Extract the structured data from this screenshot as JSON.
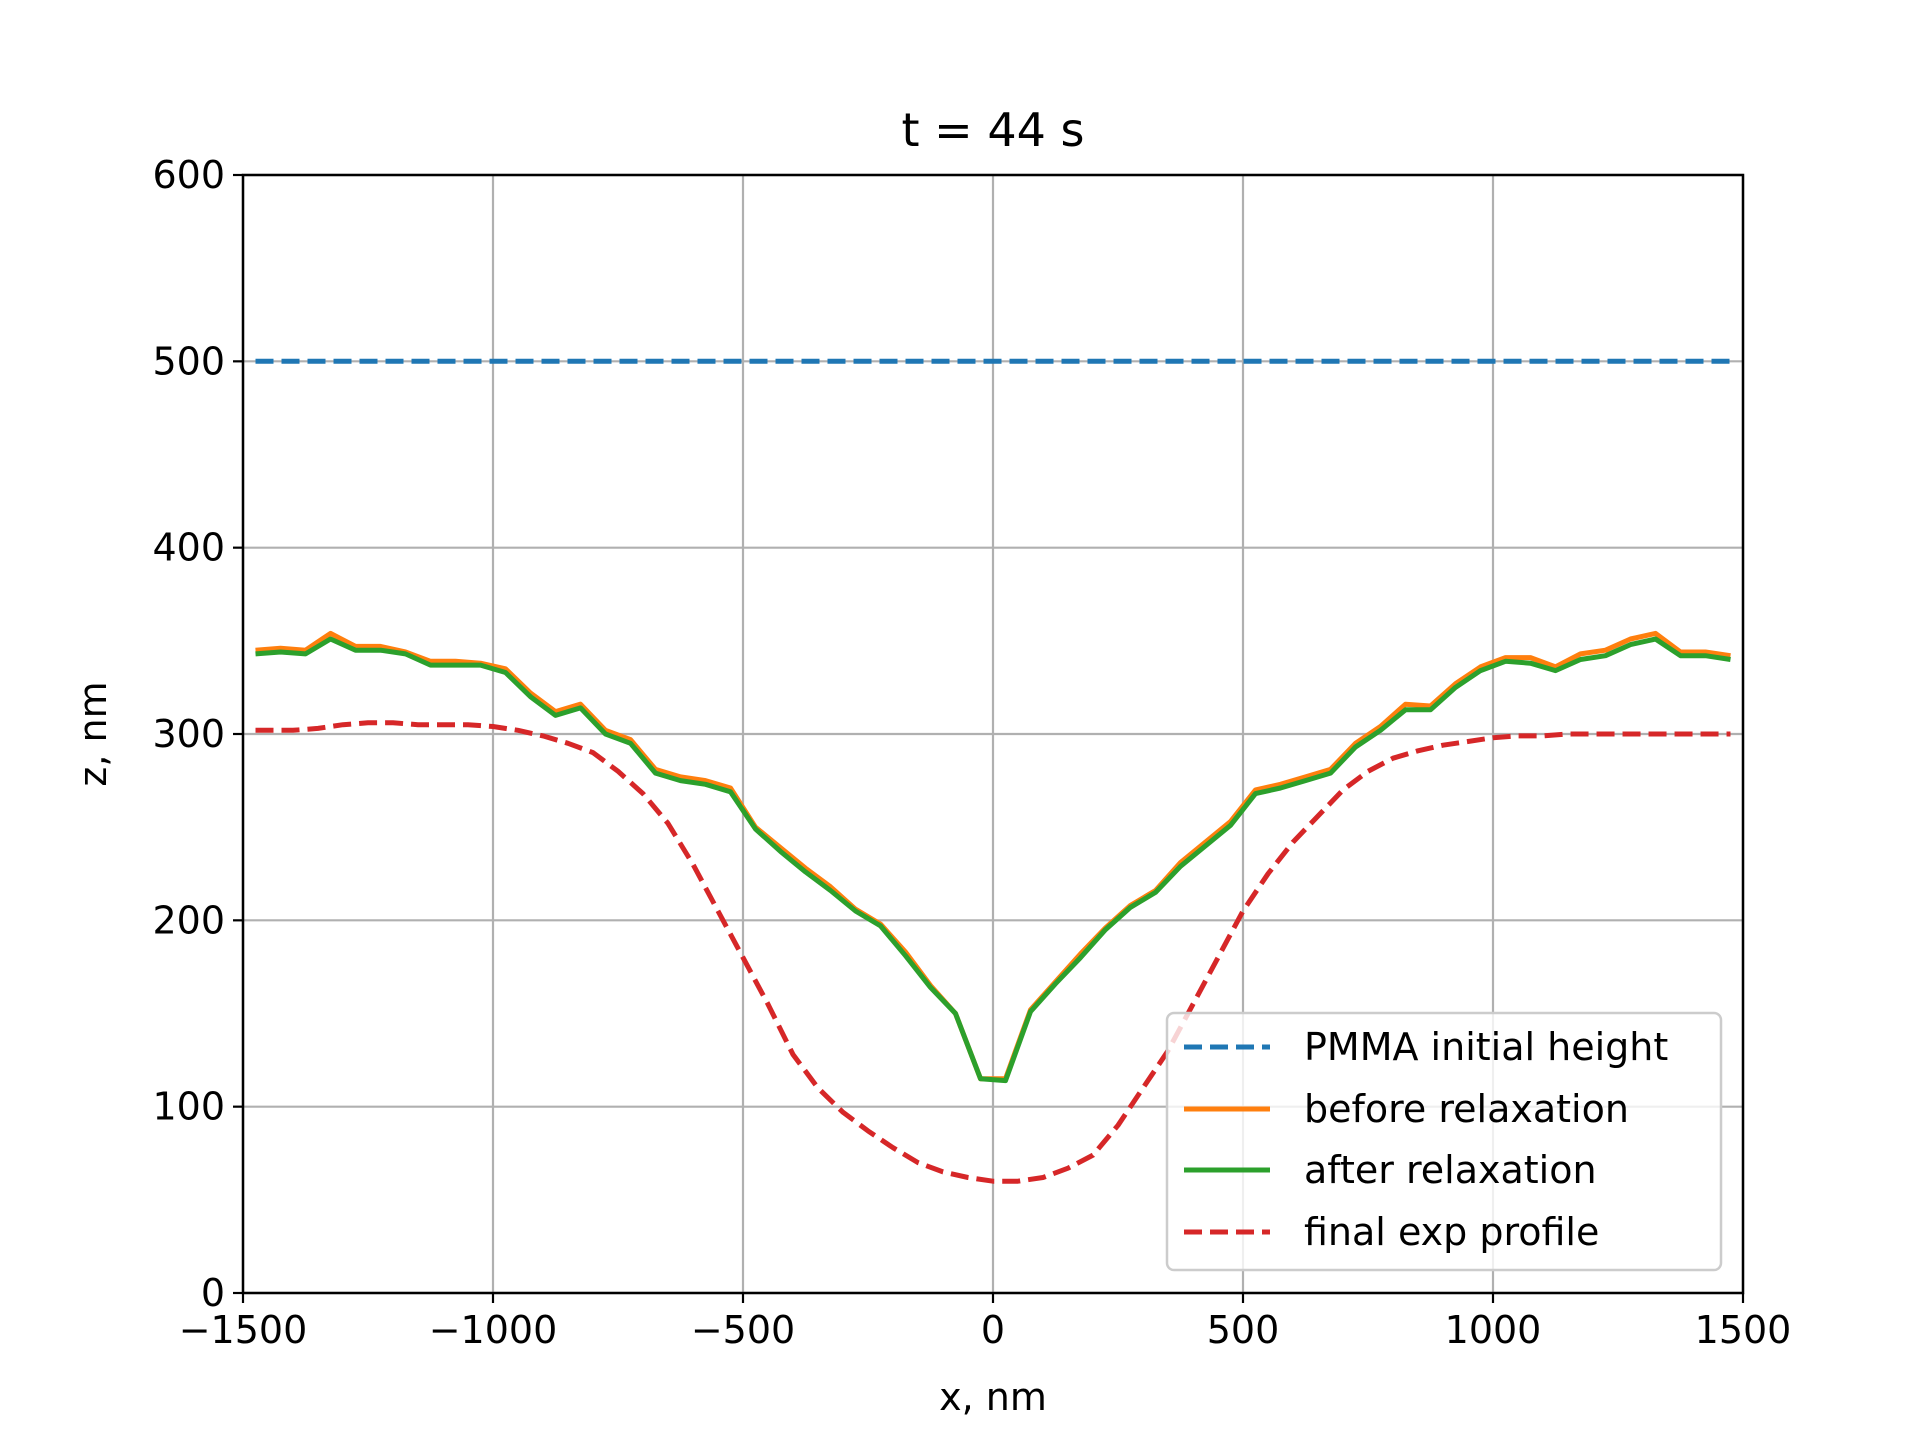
{
  "chart_data": {
    "type": "line",
    "title": "t = 44 s",
    "xlabel": "x, nm",
    "ylabel": "z, nm",
    "xlim": [
      -1500,
      1500
    ],
    "ylim": [
      0,
      600
    ],
    "xticks": [
      -1500,
      -1000,
      -500,
      0,
      500,
      1000,
      1500
    ],
    "xtick_labels": [
      "−1500",
      "−1000",
      "−500",
      "0",
      "500",
      "1000",
      "1500"
    ],
    "yticks": [
      0,
      100,
      200,
      300,
      400,
      500,
      600
    ],
    "ytick_labels": [
      "0",
      "100",
      "200",
      "300",
      "400",
      "500",
      "600"
    ],
    "grid": true,
    "legend_position": "lower-right",
    "series": [
      {
        "name": "PMMA initial height",
        "color": "#1f77b4",
        "style": "dashed",
        "x": [
          -1475,
          1475
        ],
        "y": [
          500,
          500
        ]
      },
      {
        "name": "before relaxation",
        "color": "#ff7f0e",
        "style": "solid",
        "x": [
          -1475,
          -1425,
          -1375,
          -1325,
          -1275,
          -1225,
          -1175,
          -1125,
          -1075,
          -1025,
          -975,
          -925,
          -875,
          -825,
          -775,
          -725,
          -675,
          -625,
          -575,
          -525,
          -475,
          -425,
          -375,
          -325,
          -275,
          -225,
          -175,
          -125,
          -75,
          -25,
          25,
          75,
          125,
          175,
          225,
          275,
          325,
          375,
          425,
          475,
          525,
          575,
          625,
          675,
          725,
          775,
          825,
          875,
          925,
          975,
          1025,
          1075,
          1125,
          1175,
          1225,
          1275,
          1325,
          1375,
          1425,
          1475
        ],
        "y": [
          345,
          346,
          345,
          354,
          347,
          347,
          344,
          339,
          339,
          338,
          335,
          322,
          312,
          316,
          302,
          297,
          281,
          277,
          275,
          271,
          250,
          239,
          228,
          218,
          206,
          198,
          183,
          165,
          150,
          115,
          115,
          152,
          167,
          182,
          196,
          208,
          216,
          231,
          242,
          253,
          270,
          273,
          277,
          281,
          295,
          304,
          316,
          315,
          327,
          336,
          341,
          341,
          336,
          343,
          345,
          351,
          354,
          344,
          344,
          342
        ]
      },
      {
        "name": "after relaxation",
        "color": "#2ca02c",
        "style": "solid",
        "x": [
          -1475,
          -1425,
          -1375,
          -1325,
          -1275,
          -1225,
          -1175,
          -1125,
          -1075,
          -1025,
          -975,
          -925,
          -875,
          -825,
          -775,
          -725,
          -675,
          -625,
          -575,
          -525,
          -475,
          -425,
          -375,
          -325,
          -275,
          -225,
          -175,
          -125,
          -75,
          -25,
          25,
          75,
          125,
          175,
          225,
          275,
          325,
          375,
          425,
          475,
          525,
          575,
          625,
          675,
          725,
          775,
          825,
          875,
          925,
          975,
          1025,
          1075,
          1125,
          1175,
          1225,
          1275,
          1325,
          1375,
          1425,
          1475
        ],
        "y": [
          343,
          344,
          343,
          351,
          345,
          345,
          343,
          337,
          337,
          337,
          333,
          320,
          310,
          314,
          300,
          295,
          279,
          275,
          273,
          269,
          249,
          237,
          226,
          216,
          205,
          197,
          181,
          164,
          150,
          115,
          114,
          151,
          166,
          180,
          195,
          207,
          215,
          229,
          240,
          251,
          268,
          271,
          275,
          279,
          293,
          302,
          313,
          313,
          325,
          334,
          339,
          338,
          334,
          340,
          342,
          348,
          351,
          342,
          342,
          340
        ]
      },
      {
        "name": "final exp profile",
        "color": "#d62728",
        "style": "dashed",
        "x": [
          -1475,
          -1400,
          -1350,
          -1300,
          -1250,
          -1200,
          -1150,
          -1100,
          -1050,
          -1000,
          -950,
          -900,
          -850,
          -800,
          -750,
          -700,
          -650,
          -600,
          -550,
          -500,
          -450,
          -400,
          -350,
          -300,
          -250,
          -200,
          -150,
          -100,
          -50,
          0,
          50,
          100,
          150,
          200,
          250,
          300,
          350,
          400,
          450,
          500,
          550,
          600,
          650,
          700,
          750,
          800,
          850,
          900,
          950,
          1000,
          1050,
          1100,
          1150,
          1200,
          1250,
          1300,
          1350,
          1400,
          1475
        ],
        "y": [
          302,
          302,
          303,
          305,
          306,
          306,
          305,
          305,
          305,
          304,
          302,
          299,
          295,
          290,
          280,
          268,
          252,
          230,
          205,
          180,
          155,
          128,
          110,
          97,
          87,
          78,
          70,
          65,
          62,
          60,
          60,
          62,
          67,
          74,
          90,
          110,
          130,
          155,
          180,
          205,
          225,
          242,
          256,
          270,
          280,
          287,
          291,
          294,
          296,
          298,
          299,
          299,
          300,
          300,
          300,
          300,
          300,
          300,
          300
        ]
      }
    ]
  }
}
